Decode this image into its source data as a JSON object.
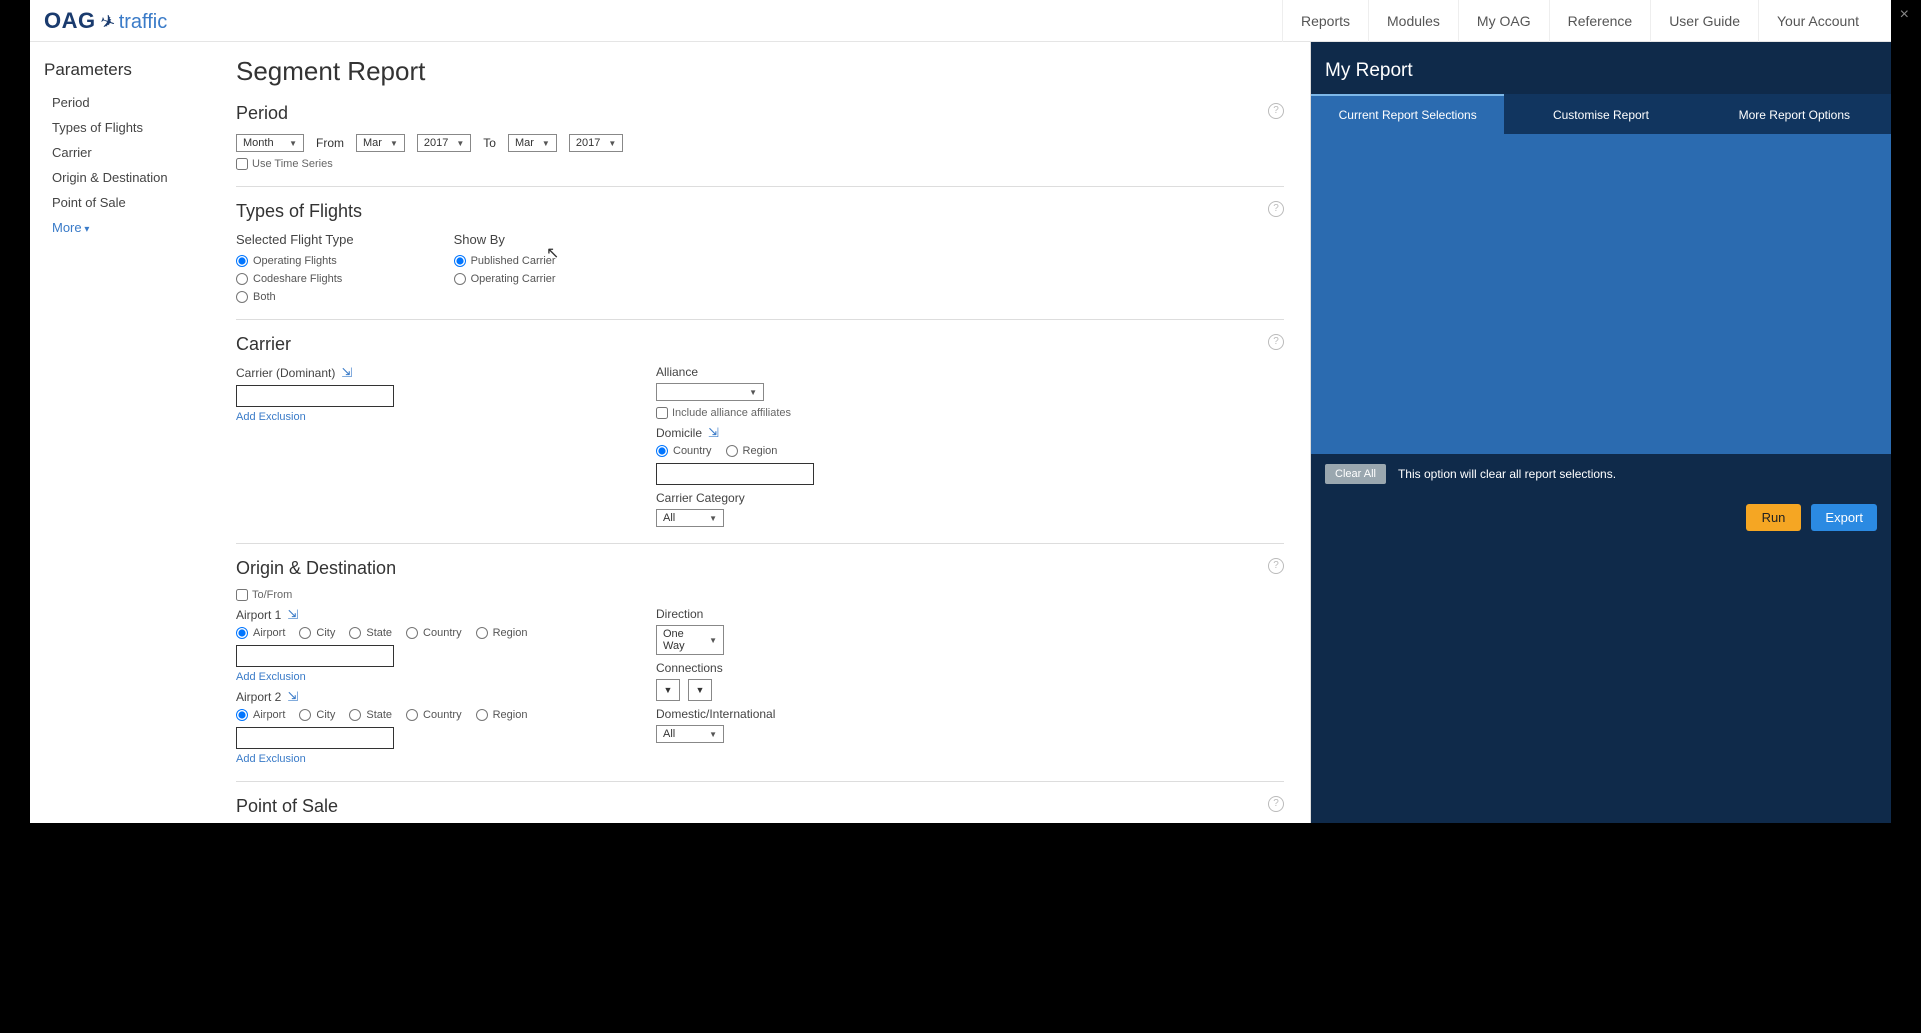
{
  "brand": {
    "name": "OAG",
    "sub": "traffic"
  },
  "topnav": [
    "Reports",
    "Modules",
    "My OAG",
    "Reference",
    "User Guide",
    "Your Account"
  ],
  "sidebar": {
    "title": "Parameters",
    "items": [
      "Period",
      "Types of Flights",
      "Carrier",
      "Origin & Destination",
      "Point of Sale"
    ],
    "more": "More"
  },
  "page": {
    "title": "Segment Report"
  },
  "period": {
    "title": "Period",
    "unit": "Month",
    "from_label": "From",
    "to_label": "To",
    "from_month": "Mar",
    "from_year": "2017",
    "to_month": "Mar",
    "to_year": "2017",
    "use_time_series": "Use Time Series"
  },
  "types": {
    "title": "Types of Flights",
    "selected_label": "Selected Flight Type",
    "show_by_label": "Show By",
    "flight_options": [
      "Operating Flights",
      "Codeshare Flights",
      "Both"
    ],
    "showby_options": [
      "Published Carrier",
      "Operating Carrier"
    ]
  },
  "carrier": {
    "title": "Carrier",
    "dominant_label": "Carrier (Dominant)",
    "add_exclusion": "Add Exclusion",
    "alliance_label": "Alliance",
    "include_affiliates": "Include alliance affiliates",
    "domicile_label": "Domicile",
    "domicile_options": [
      "Country",
      "Region"
    ],
    "category_label": "Carrier Category",
    "category_value": "All"
  },
  "origin": {
    "title": "Origin & Destination",
    "tofrom": "To/From",
    "airport1": "Airport 1",
    "airport2": "Airport 2",
    "loc_options": [
      "Airport",
      "City",
      "State",
      "Country",
      "Region"
    ],
    "add_exclusion": "Add Exclusion",
    "direction_label": "Direction",
    "direction_value": "One Way",
    "connections_label": "Connections",
    "domintl_label": "Domestic/International",
    "domintl_value": "All"
  },
  "pos": {
    "title": "Point of Sale"
  },
  "right": {
    "title": "My Report",
    "tabs": [
      "Current Report Selections",
      "Customise Report",
      "More Report Options"
    ],
    "clear": "Clear All",
    "clear_msg": "This option will clear all report selections.",
    "run": "Run",
    "export": "Export"
  }
}
